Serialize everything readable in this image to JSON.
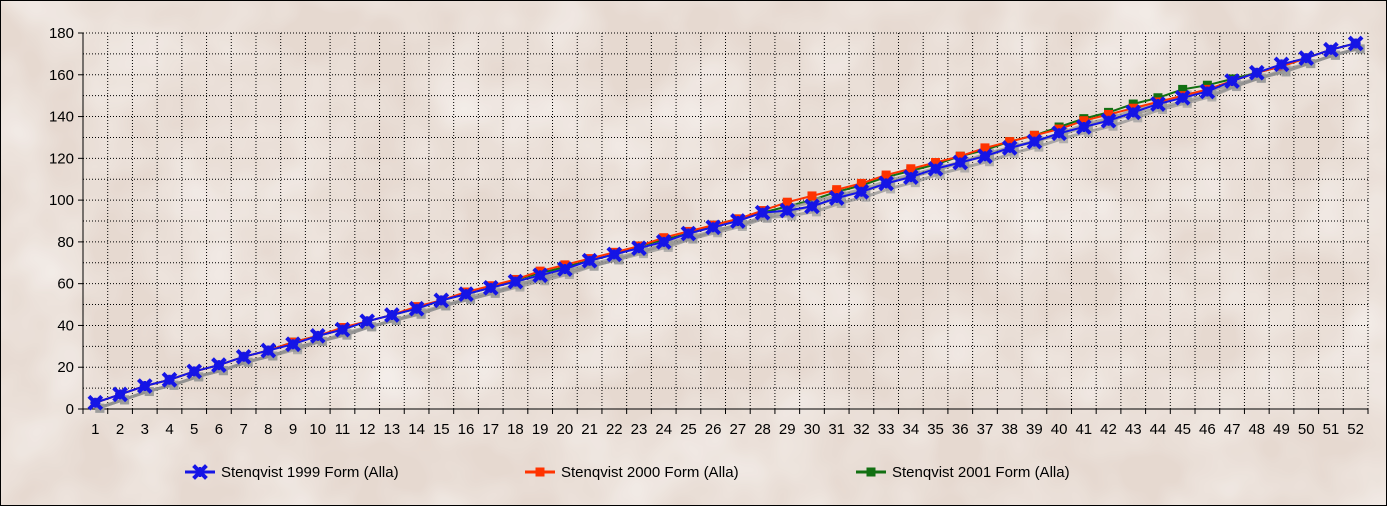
{
  "chart_data": {
    "type": "line",
    "title": "",
    "xlabel": "",
    "ylabel": "",
    "ylim": [
      0,
      180
    ],
    "y_ticks": [
      0,
      20,
      40,
      60,
      80,
      100,
      120,
      140,
      160,
      180
    ],
    "grid": true,
    "legend_position": "bottom",
    "categories": [
      "1",
      "2",
      "3",
      "4",
      "5",
      "6",
      "7",
      "8",
      "9",
      "10",
      "11",
      "12",
      "13",
      "14",
      "15",
      "16",
      "17",
      "18",
      "19",
      "20",
      "21",
      "22",
      "23",
      "24",
      "25",
      "26",
      "27",
      "28",
      "29",
      "30",
      "31",
      "32",
      "33",
      "34",
      "35",
      "36",
      "37",
      "38",
      "39",
      "40",
      "41",
      "42",
      "43",
      "44",
      "45",
      "46",
      "47",
      "48",
      "49",
      "50",
      "51",
      "52"
    ],
    "series": [
      {
        "name": "Stenqvist 1999 Form (Alla)",
        "color": "#1515e6",
        "marker": "x",
        "values": [
          3,
          7,
          11,
          14,
          18,
          21,
          25,
          28,
          31,
          35,
          38,
          42,
          45,
          48,
          52,
          55,
          58,
          61,
          64,
          67,
          71,
          74,
          77,
          80,
          84,
          87,
          90,
          94,
          95,
          97,
          101,
          104,
          108,
          111,
          115,
          118,
          121,
          125,
          128,
          132,
          135,
          138,
          142,
          146,
          149,
          152,
          157,
          161,
          165,
          168,
          172,
          175
        ]
      },
      {
        "name": "Stenqvist 2000 Form (Alla)",
        "color": "#ff3300",
        "marker": "square",
        "values": [
          3,
          7,
          11,
          14,
          18,
          21,
          25,
          28,
          32,
          35,
          39,
          42,
          45,
          49,
          52,
          56,
          59,
          62,
          66,
          69,
          72,
          75,
          78,
          82,
          85,
          88,
          91,
          95,
          99,
          102,
          105,
          108,
          112,
          115,
          118,
          121,
          125,
          128,
          131,
          134,
          138,
          141,
          144,
          147,
          150,
          153,
          157,
          161,
          164,
          168,
          172,
          175
        ]
      },
      {
        "name": "Stenqvist 2001 Form (Alla)",
        "color": "#127012",
        "marker": "square",
        "values": [
          3,
          7,
          11,
          14,
          18,
          21,
          25,
          28,
          32,
          35,
          38,
          42,
          45,
          48,
          52,
          55,
          58,
          62,
          65,
          68,
          71,
          74,
          78,
          81,
          84,
          88,
          91,
          94,
          97,
          100,
          104,
          107,
          111,
          114,
          117,
          121,
          124,
          128,
          131,
          135,
          139,
          142,
          146,
          149,
          153,
          155,
          158,
          161,
          164,
          168,
          172,
          175
        ]
      }
    ]
  }
}
